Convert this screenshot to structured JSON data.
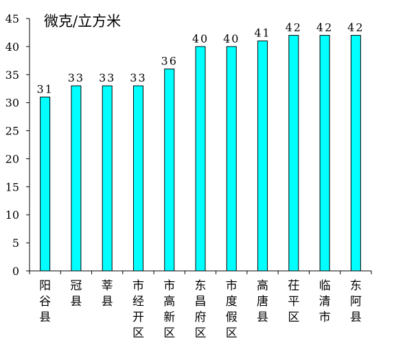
{
  "chart_data": {
    "type": "bar",
    "title": "",
    "ylabel": "微克/立方米",
    "xlabel": "",
    "ylim": [
      0,
      45
    ],
    "yticks": [
      0,
      5,
      10,
      15,
      20,
      25,
      30,
      35,
      40,
      45
    ],
    "grid": false,
    "legend": "none",
    "bar_color": "#00FFFF",
    "bar_edge_color": "#000000",
    "categories": [
      "阳谷县",
      "冠县",
      "莘县",
      "市经开区",
      "市高新区",
      "东昌府区",
      "市度假区",
      "高唐县",
      "茌平区",
      "临清市",
      "东阿县"
    ],
    "values": [
      31,
      33,
      33,
      33,
      36,
      40,
      40,
      41,
      42,
      42,
      42
    ]
  }
}
